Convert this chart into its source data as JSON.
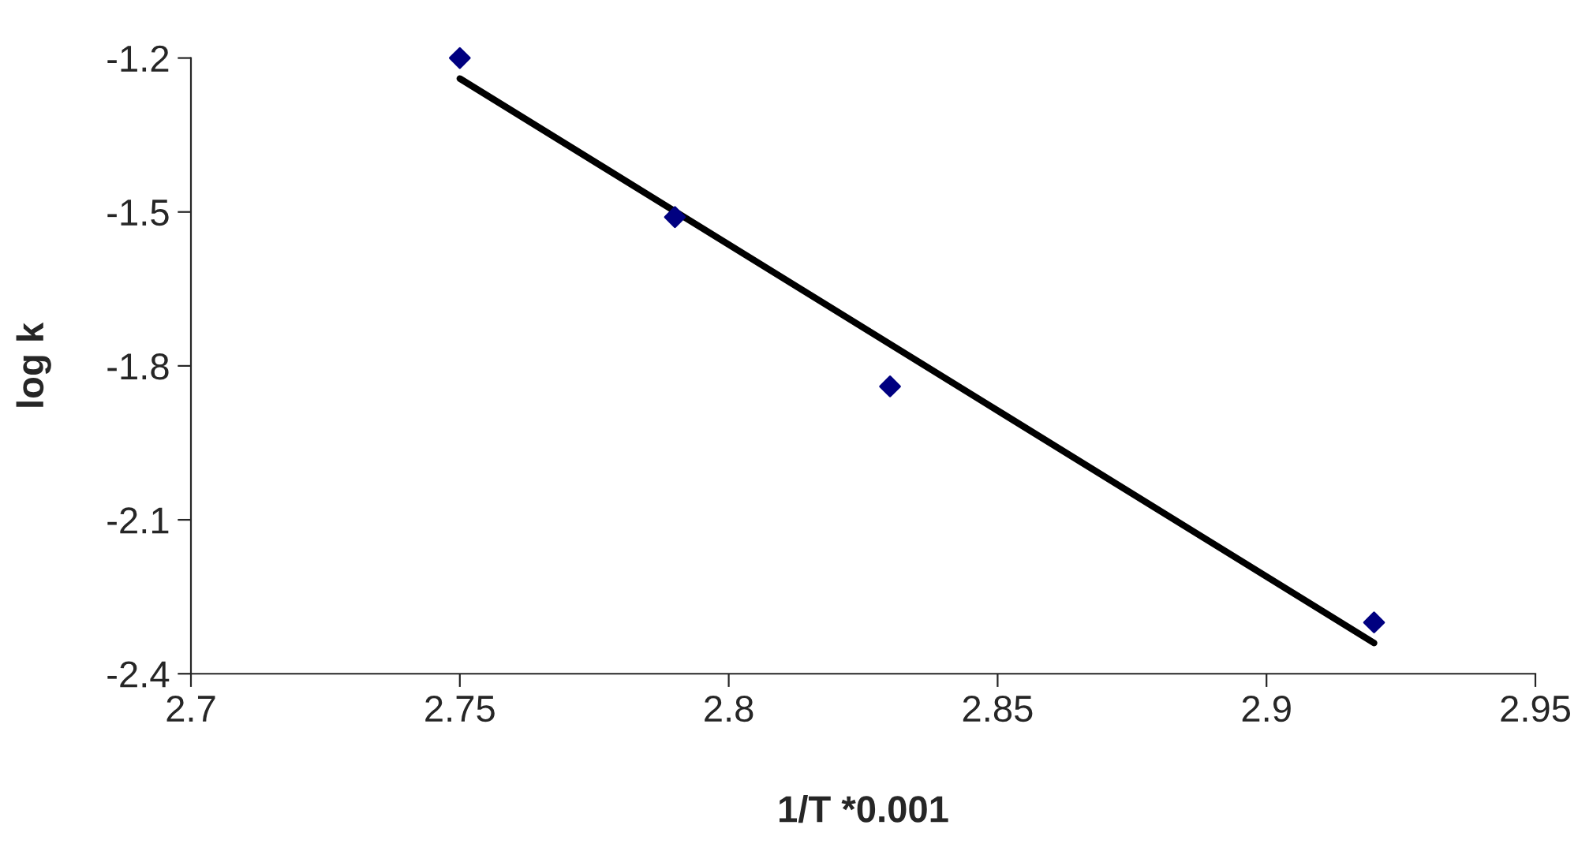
{
  "chart_data": {
    "type": "scatter",
    "xlabel": "1/T *0.001",
    "ylabel": "log k",
    "series": [
      {
        "color": "#000080",
        "marker": "diamond",
        "x": [
          2.75,
          2.79,
          2.83,
          2.92
        ],
        "values": [
          -1.2,
          -1.51,
          -1.84,
          -2.3
        ]
      },
      {
        "type": "line",
        "color": "#000000",
        "marker": "none",
        "x": [
          2.75,
          2.92
        ],
        "values": [
          -1.24,
          -2.34
        ]
      }
    ],
    "xlim": [
      2.7,
      2.95
    ],
    "xticks": [
      2.7,
      2.75,
      2.8,
      2.85,
      2.9,
      2.95
    ],
    "ylim": [
      -2.4,
      -1.2
    ],
    "yticks": [
      -2.4,
      -2.1,
      -1.8,
      -1.5,
      -1.2
    ],
    "grid": false
  }
}
